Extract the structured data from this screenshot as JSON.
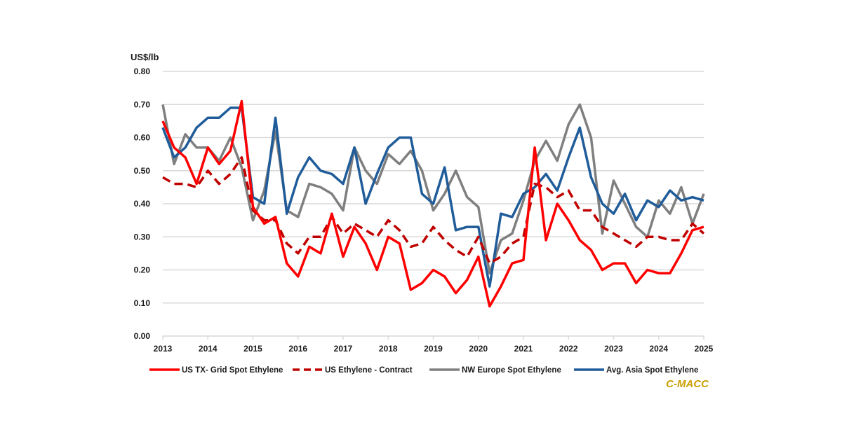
{
  "chart_data": {
    "type": "line",
    "title": "",
    "ylabel": "US$/lb",
    "xlabel": "",
    "ylim": [
      0,
      0.8
    ],
    "xlim": [
      2013,
      2025
    ],
    "yticks": [
      "0.00",
      "0.10",
      "0.20",
      "0.30",
      "0.40",
      "0.50",
      "0.60",
      "0.70",
      "0.80"
    ],
    "ytick_values": [
      0,
      0.1,
      0.2,
      0.3,
      0.4,
      0.5,
      0.6,
      0.7,
      0.8
    ],
    "xticks": [
      "2013",
      "2014",
      "2015",
      "2016",
      "2017",
      "2018",
      "2019",
      "2020",
      "2021",
      "2022",
      "2023",
      "2024",
      "2025"
    ],
    "xtick_values": [
      2013,
      2014,
      2015,
      2016,
      2017,
      2018,
      2019,
      2020,
      2021,
      2022,
      2023,
      2024,
      2025
    ],
    "grid": true,
    "legend_position": "bottom",
    "source_label": "C-MACC",
    "x": [
      2013.0,
      2013.25,
      2013.5,
      2013.75,
      2014.0,
      2014.25,
      2014.5,
      2014.75,
      2015.0,
      2015.25,
      2015.5,
      2015.75,
      2016.0,
      2016.25,
      2016.5,
      2016.75,
      2017.0,
      2017.25,
      2017.5,
      2017.75,
      2018.0,
      2018.25,
      2018.5,
      2018.75,
      2019.0,
      2019.25,
      2019.5,
      2019.75,
      2020.0,
      2020.25,
      2020.5,
      2020.75,
      2021.0,
      2021.25,
      2021.5,
      2021.75,
      2022.0,
      2022.25,
      2022.5,
      2022.75,
      2023.0,
      2023.25,
      2023.5,
      2023.75,
      2024.0,
      2024.25,
      2024.5,
      2024.75,
      2025.0
    ],
    "series": [
      {
        "name": "US TX- Grid Spot Ethylene",
        "color": "#ff0000",
        "style": "solid",
        "values": [
          0.65,
          0.57,
          0.54,
          0.46,
          0.57,
          0.52,
          0.56,
          0.71,
          0.39,
          0.34,
          0.36,
          0.22,
          0.18,
          0.27,
          0.25,
          0.37,
          0.24,
          0.33,
          0.28,
          0.2,
          0.3,
          0.28,
          0.14,
          0.16,
          0.2,
          0.18,
          0.13,
          0.17,
          0.24,
          0.09,
          0.15,
          0.22,
          0.23,
          0.57,
          0.29,
          0.4,
          0.35,
          0.29,
          0.26,
          0.2,
          0.22,
          0.22,
          0.16,
          0.2,
          0.19,
          0.19,
          0.25,
          0.32,
          0.33
        ]
      },
      {
        "name": "US Ethylene - Contract",
        "color": "#c00000",
        "style": "dashed",
        "values": [
          0.48,
          0.46,
          0.46,
          0.45,
          0.5,
          0.46,
          0.49,
          0.54,
          0.38,
          0.35,
          0.35,
          0.28,
          0.25,
          0.3,
          0.3,
          0.36,
          0.31,
          0.34,
          0.32,
          0.3,
          0.35,
          0.32,
          0.27,
          0.28,
          0.33,
          0.29,
          0.26,
          0.24,
          0.3,
          0.22,
          0.24,
          0.28,
          0.3,
          0.46,
          0.45,
          0.42,
          0.44,
          0.38,
          0.38,
          0.33,
          0.31,
          0.29,
          0.27,
          0.3,
          0.3,
          0.29,
          0.29,
          0.34,
          0.31
        ]
      },
      {
        "name": "NW Europe Spot Ethylene",
        "color": "#7f7f7f",
        "style": "solid",
        "values": [
          0.7,
          0.52,
          0.61,
          0.57,
          0.57,
          0.53,
          0.6,
          0.51,
          0.35,
          0.44,
          0.62,
          0.38,
          0.36,
          0.46,
          0.45,
          0.43,
          0.38,
          0.57,
          0.5,
          0.46,
          0.55,
          0.52,
          0.56,
          0.5,
          0.38,
          0.43,
          0.5,
          0.42,
          0.39,
          0.19,
          0.29,
          0.31,
          0.41,
          0.53,
          0.59,
          0.53,
          0.64,
          0.7,
          0.6,
          0.31,
          0.47,
          0.4,
          0.33,
          0.3,
          0.41,
          0.37,
          0.45,
          0.34,
          0.43
        ]
      },
      {
        "name": "Avg. Asia Spot Ethylene",
        "color": "#1f5c99",
        "style": "solid",
        "values": [
          0.63,
          0.54,
          0.57,
          0.63,
          0.66,
          0.66,
          0.69,
          0.69,
          0.42,
          0.4,
          0.66,
          0.37,
          0.48,
          0.54,
          0.5,
          0.49,
          0.46,
          0.57,
          0.4,
          0.49,
          0.57,
          0.6,
          0.6,
          0.43,
          0.4,
          0.51,
          0.32,
          0.33,
          0.33,
          0.15,
          0.37,
          0.36,
          0.43,
          0.45,
          0.49,
          0.44,
          0.54,
          0.63,
          0.48,
          0.4,
          0.37,
          0.43,
          0.35,
          0.41,
          0.39,
          0.44,
          0.41,
          0.42,
          0.41
        ]
      }
    ]
  }
}
